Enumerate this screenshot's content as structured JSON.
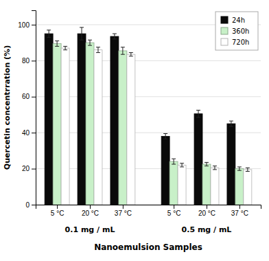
{
  "chart_data": {
    "type": "bar",
    "categories": [
      "5 °C",
      "20 °C",
      "37 °C",
      "5 °C",
      "20 °C",
      "37 °C"
    ],
    "annotations": [
      "0.1 mg / mL",
      "0.5 mg / mL"
    ],
    "series": [
      {
        "name": "24h",
        "color": "#0a0a0a",
        "values": [
          95.0,
          95.0,
          93.5,
          38.0,
          50.5,
          45.0
        ],
        "errors": [
          2.0,
          3.5,
          1.5,
          1.5,
          2.0,
          1.5
        ]
      },
      {
        "name": "360h",
        "color": "#c8f0c8",
        "values": [
          89.5,
          90.0,
          85.5,
          24.0,
          22.5,
          20.0
        ],
        "errors": [
          1.5,
          1.5,
          2.0,
          1.5,
          1.0,
          1.0
        ]
      },
      {
        "name": "720h",
        "color": "#ffffff",
        "values": [
          87.0,
          86.0,
          83.5,
          22.0,
          20.5,
          19.5
        ],
        "errors": [
          1.0,
          1.5,
          1.0,
          1.0,
          1.0,
          1.0
        ]
      }
    ],
    "y_label": "Quercetin concentrration (%)",
    "x_label": "Nanoemulsion Samples",
    "ylim": [
      0,
      108
    ],
    "yticks": [
      0,
      20,
      40,
      60,
      80,
      100
    ],
    "grid": true,
    "legend": "upper right"
  }
}
